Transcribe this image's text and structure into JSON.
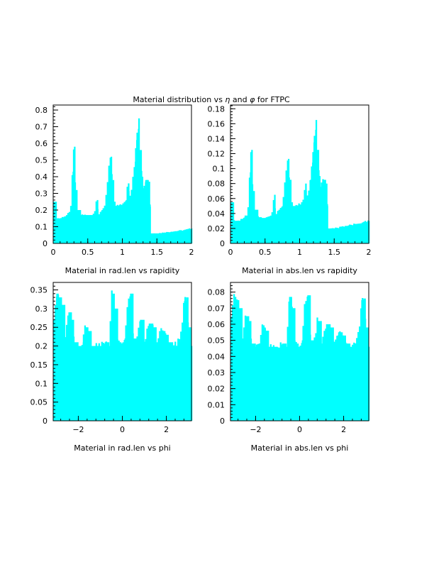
{
  "page_title": {
    "prefix": "Material distribution vs ",
    "eta_symbol": "η",
    "and": " and ",
    "phi_symbol": "φ",
    "suffix": " for FTPC"
  },
  "colors": {
    "fill": "#00ffff",
    "axis": "#000000",
    "background": "#ffffff"
  },
  "chart_data": [
    {
      "type": "bar",
      "id": "radlen-rapidity",
      "xlabel": "Material in rad.len vs rapidity",
      "xlim": [
        0,
        2
      ],
      "ylim": [
        0,
        0.83
      ],
      "xticks": [
        0,
        0.5,
        1,
        1.5,
        2
      ],
      "xtick_labels": [
        "0",
        "0.5",
        "1",
        "1.5",
        "2"
      ],
      "yticks": [
        0,
        0.1,
        0.2,
        0.3,
        0.4,
        0.5,
        0.6,
        0.7,
        0.8
      ],
      "ytick_labels": [
        "0",
        "0.1",
        "0.2",
        "0.3",
        "0.4",
        "0.5",
        "0.6",
        "0.7",
        "0.8"
      ],
      "x": [
        0.0,
        0.05,
        0.1,
        0.15,
        0.2,
        0.25,
        0.28,
        0.3,
        0.32,
        0.35,
        0.4,
        0.45,
        0.5,
        0.55,
        0.6,
        0.63,
        0.65,
        0.7,
        0.75,
        0.78,
        0.8,
        0.83,
        0.85,
        0.88,
        0.9,
        0.95,
        1.0,
        1.05,
        1.08,
        1.1,
        1.13,
        1.15,
        1.18,
        1.2,
        1.23,
        1.25,
        1.28,
        1.3,
        1.33,
        1.35,
        1.38,
        1.4,
        1.41,
        1.5,
        1.6,
        1.7,
        1.8,
        1.9,
        2.0
      ],
      "values": [
        0.25,
        0.15,
        0.15,
        0.16,
        0.17,
        0.19,
        0.43,
        0.58,
        0.32,
        0.2,
        0.17,
        0.17,
        0.17,
        0.17,
        0.19,
        0.26,
        0.17,
        0.2,
        0.22,
        0.34,
        0.44,
        0.52,
        0.38,
        0.25,
        0.22,
        0.23,
        0.24,
        0.26,
        0.36,
        0.28,
        0.3,
        0.39,
        0.49,
        0.62,
        0.75,
        0.56,
        0.4,
        0.33,
        0.38,
        0.38,
        0.37,
        0.22,
        0.06,
        0.06,
        0.065,
        0.07,
        0.075,
        0.08,
        0.09
      ]
    },
    {
      "type": "bar",
      "id": "abslen-rapidity",
      "xlabel": "Material in abs.len vs rapidity",
      "xlim": [
        0,
        2
      ],
      "ylim": [
        0,
        0.185
      ],
      "xticks": [
        0,
        0.5,
        1,
        1.5,
        2
      ],
      "xtick_labels": [
        "0",
        "0.5",
        "1",
        "1.5",
        "2"
      ],
      "yticks": [
        0,
        0.02,
        0.04,
        0.06,
        0.08,
        0.1,
        0.12,
        0.14,
        0.16,
        0.18
      ],
      "ytick_labels": [
        "0",
        "0.02",
        "0.04",
        "0.06",
        "0.08",
        "0.1",
        "0.12",
        "0.14",
        "0.16",
        "0.18"
      ],
      "x": [
        0.0,
        0.05,
        0.1,
        0.15,
        0.2,
        0.25,
        0.28,
        0.3,
        0.32,
        0.35,
        0.4,
        0.45,
        0.5,
        0.55,
        0.6,
        0.63,
        0.65,
        0.7,
        0.75,
        0.78,
        0.8,
        0.83,
        0.85,
        0.88,
        0.9,
        0.95,
        1.0,
        1.05,
        1.08,
        1.1,
        1.13,
        1.15,
        1.18,
        1.2,
        1.23,
        1.25,
        1.28,
        1.3,
        1.33,
        1.35,
        1.38,
        1.4,
        1.41,
        1.5,
        1.6,
        1.7,
        1.8,
        1.9,
        2.0
      ],
      "values": [
        0.055,
        0.03,
        0.03,
        0.032,
        0.035,
        0.04,
        0.095,
        0.125,
        0.07,
        0.045,
        0.035,
        0.034,
        0.034,
        0.036,
        0.04,
        0.065,
        0.038,
        0.045,
        0.05,
        0.075,
        0.097,
        0.113,
        0.085,
        0.055,
        0.05,
        0.05,
        0.052,
        0.058,
        0.08,
        0.062,
        0.068,
        0.085,
        0.108,
        0.135,
        0.165,
        0.125,
        0.09,
        0.075,
        0.085,
        0.085,
        0.08,
        0.05,
        0.02,
        0.02,
        0.022,
        0.024,
        0.026,
        0.028,
        0.03
      ]
    },
    {
      "type": "bar",
      "id": "radlen-phi",
      "xlabel": "Material in rad.len vs phi",
      "xlim": [
        -3.1416,
        3.1416
      ],
      "ylim": [
        0,
        0.37
      ],
      "xticks": [
        -2,
        0,
        2
      ],
      "xtick_labels": [
        "−2",
        "0",
        "2"
      ],
      "yticks": [
        0,
        0.05,
        0.1,
        0.15,
        0.2,
        0.25,
        0.3,
        0.35
      ],
      "ytick_labels": [
        "0",
        "0.05",
        "0.1",
        "0.15",
        "0.2",
        "0.25",
        "0.3",
        "0.35"
      ],
      "x": [
        -3.14,
        -3.0,
        -2.9,
        -2.75,
        -2.6,
        -2.45,
        -2.3,
        -2.2,
        -2.0,
        -1.8,
        -1.7,
        -1.55,
        -1.4,
        -1.2,
        -1.0,
        -0.8,
        -0.6,
        -0.48,
        -0.35,
        -0.2,
        -0.05,
        0.1,
        0.22,
        0.35,
        0.5,
        0.65,
        0.8,
        1.0,
        1.2,
        1.4,
        1.55,
        1.75,
        1.95,
        2.1,
        2.3,
        2.5,
        2.7,
        2.8,
        2.9,
        3.0,
        3.14
      ],
      "values": [
        0.26,
        0.34,
        0.33,
        0.31,
        0.22,
        0.29,
        0.27,
        0.21,
        0.2,
        0.21,
        0.25,
        0.24,
        0.2,
        0.2,
        0.2,
        0.21,
        0.2,
        0.34,
        0.3,
        0.21,
        0.2,
        0.22,
        0.3,
        0.34,
        0.22,
        0.21,
        0.27,
        0.21,
        0.26,
        0.25,
        0.21,
        0.24,
        0.23,
        0.21,
        0.2,
        0.21,
        0.24,
        0.32,
        0.33,
        0.25,
        0.2
      ]
    },
    {
      "type": "bar",
      "id": "abslen-phi",
      "xlabel": "Material in abs.len vs phi",
      "xlim": [
        -3.1416,
        3.1416
      ],
      "ylim": [
        0,
        0.086
      ],
      "xticks": [
        -2,
        0,
        2
      ],
      "xtick_labels": [
        "−2",
        "0",
        "2"
      ],
      "yticks": [
        0,
        0.01,
        0.02,
        0.03,
        0.04,
        0.05,
        0.06,
        0.07,
        0.08
      ],
      "ytick_labels": [
        "0",
        "0.01",
        "0.02",
        "0.03",
        "0.04",
        "0.05",
        "0.06",
        "0.07",
        "0.08"
      ],
      "x": [
        -3.14,
        -3.0,
        -2.9,
        -2.75,
        -2.6,
        -2.45,
        -2.3,
        -2.2,
        -2.0,
        -1.8,
        -1.7,
        -1.55,
        -1.4,
        -1.2,
        -1.0,
        -0.8,
        -0.6,
        -0.48,
        -0.35,
        -0.2,
        -0.05,
        0.1,
        0.22,
        0.35,
        0.5,
        0.65,
        0.8,
        1.0,
        1.2,
        1.4,
        1.55,
        1.75,
        1.95,
        2.1,
        2.3,
        2.5,
        2.7,
        2.8,
        2.9,
        3.0,
        3.14
      ],
      "values": [
        0.06,
        0.077,
        0.075,
        0.07,
        0.05,
        0.065,
        0.062,
        0.048,
        0.046,
        0.048,
        0.058,
        0.056,
        0.046,
        0.046,
        0.045,
        0.048,
        0.046,
        0.077,
        0.07,
        0.048,
        0.046,
        0.05,
        0.07,
        0.078,
        0.05,
        0.048,
        0.062,
        0.048,
        0.06,
        0.058,
        0.048,
        0.055,
        0.053,
        0.048,
        0.046,
        0.048,
        0.055,
        0.075,
        0.076,
        0.058,
        0.046
      ]
    }
  ]
}
